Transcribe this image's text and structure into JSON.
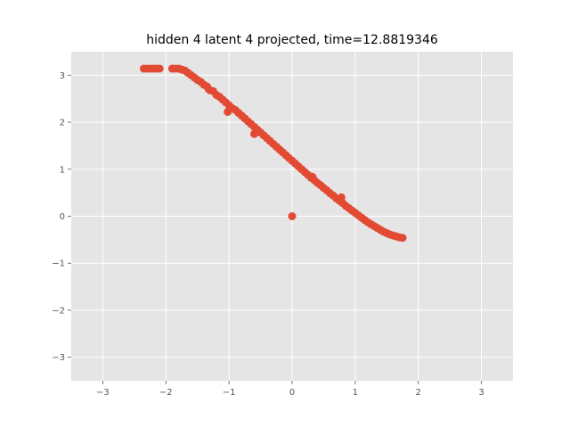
{
  "chart_data": {
    "type": "scatter",
    "title": "hidden 4 latent 4 projected, time=12.8819346",
    "xlabel": "",
    "ylabel": "",
    "xlim": [
      -3.5,
      3.5
    ],
    "ylim": [
      -3.5,
      3.5
    ],
    "xticks": [
      -3,
      -2,
      -1,
      0,
      1,
      2,
      3
    ],
    "yticks": [
      -3,
      -2,
      -1,
      0,
      1,
      2,
      3
    ],
    "xtick_labels": [
      "−3",
      "−2",
      "−1",
      "0",
      "1",
      "2",
      "3"
    ],
    "ytick_labels": [
      "−3",
      "−2",
      "−1",
      "0",
      "1",
      "2",
      "3"
    ],
    "grid": true,
    "style": "ggplot",
    "colors": {
      "marker": "#E24A33",
      "background": "#E5E5E5",
      "grid": "#FFFFFF"
    },
    "series": [
      {
        "points": [
          [
            -2.35,
            3.14
          ],
          [
            -2.3,
            3.14
          ],
          [
            -2.25,
            3.14
          ],
          [
            -2.2,
            3.14
          ],
          [
            -2.15,
            3.14
          ],
          [
            -2.1,
            3.14
          ],
          [
            -1.9,
            3.14
          ],
          [
            -1.85,
            3.14
          ],
          [
            -1.8,
            3.14
          ],
          [
            -1.75,
            3.12
          ],
          [
            -1.7,
            3.1
          ],
          [
            -1.65,
            3.05
          ],
          [
            -1.6,
            3.0
          ],
          [
            -1.55,
            2.95
          ],
          [
            -1.5,
            2.9
          ],
          [
            -1.45,
            2.86
          ],
          [
            -1.4,
            2.8
          ],
          [
            -1.35,
            2.76
          ],
          [
            -1.3,
            2.68
          ],
          [
            -1.25,
            2.66
          ],
          [
            -1.2,
            2.58
          ],
          [
            -1.15,
            2.54
          ],
          [
            -1.1,
            2.48
          ],
          [
            -1.05,
            2.42
          ],
          [
            -1.0,
            2.36
          ],
          [
            -0.95,
            2.3
          ],
          [
            -0.9,
            2.26
          ],
          [
            -0.85,
            2.2
          ],
          [
            -0.8,
            2.14
          ],
          [
            -0.75,
            2.08
          ],
          [
            -0.7,
            2.02
          ],
          [
            -0.65,
            1.96
          ],
          [
            -0.6,
            1.9
          ],
          [
            -0.55,
            1.84
          ],
          [
            -0.5,
            1.78
          ],
          [
            -0.45,
            1.72
          ],
          [
            -0.4,
            1.66
          ],
          [
            -0.35,
            1.6
          ],
          [
            -0.3,
            1.54
          ],
          [
            -0.25,
            1.48
          ],
          [
            -0.2,
            1.42
          ],
          [
            -0.15,
            1.36
          ],
          [
            -0.1,
            1.3
          ],
          [
            -0.05,
            1.24
          ],
          [
            0.0,
            1.18
          ],
          [
            0.05,
            1.12
          ],
          [
            0.1,
            1.06
          ],
          [
            0.15,
            1.0
          ],
          [
            0.2,
            0.94
          ],
          [
            0.25,
            0.88
          ],
          [
            0.3,
            0.82
          ],
          [
            0.35,
            0.77
          ],
          [
            0.4,
            0.71
          ],
          [
            0.45,
            0.66
          ],
          [
            0.5,
            0.6
          ],
          [
            0.55,
            0.55
          ],
          [
            0.6,
            0.49
          ],
          [
            0.65,
            0.44
          ],
          [
            0.7,
            0.38
          ],
          [
            0.75,
            0.33
          ],
          [
            0.8,
            0.28
          ],
          [
            0.85,
            0.22
          ],
          [
            0.9,
            0.17
          ],
          [
            0.95,
            0.12
          ],
          [
            1.0,
            0.07
          ],
          [
            1.05,
            0.02
          ],
          [
            1.1,
            -0.03
          ],
          [
            1.15,
            -0.08
          ],
          [
            1.2,
            -0.13
          ],
          [
            1.25,
            -0.17
          ],
          [
            1.3,
            -0.21
          ],
          [
            1.35,
            -0.25
          ],
          [
            1.4,
            -0.29
          ],
          [
            1.45,
            -0.33
          ],
          [
            1.5,
            -0.36
          ],
          [
            1.55,
            -0.39
          ],
          [
            1.6,
            -0.41
          ],
          [
            1.65,
            -0.43
          ],
          [
            1.7,
            -0.45
          ],
          [
            1.75,
            -0.46
          ],
          [
            -1.32,
            2.7
          ],
          [
            -1.02,
            2.22
          ],
          [
            -0.6,
            1.75
          ],
          [
            0.32,
            0.84
          ],
          [
            0.78,
            0.4
          ],
          [
            0.0,
            0.0
          ]
        ]
      }
    ]
  }
}
